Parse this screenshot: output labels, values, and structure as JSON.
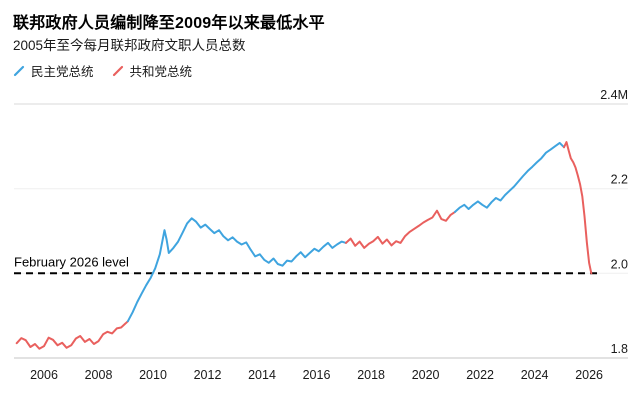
{
  "header": {
    "title": "联邦政府人员编制降至2009年以来最低水平",
    "subtitle": "2005年至今每月联邦政府文职人员总数"
  },
  "legend": {
    "items": [
      {
        "id": "democrat",
        "label": "民主党总统",
        "color": "#3FA4DF"
      },
      {
        "id": "republican",
        "label": "共和党总统",
        "color": "#E9605E"
      }
    ]
  },
  "chart_data": {
    "type": "line",
    "title": "联邦政府人员编制降至2009年以来最低水平",
    "subtitle": "2005年至今每月联邦政府文职人员总数",
    "unit": "millions of federal civilian employees",
    "xlabel": "",
    "ylabel": "",
    "xlim": [
      2004.9,
      2026.4
    ],
    "ylim": [
      1.8,
      2.4
    ],
    "grid": "horizontal",
    "legend_position": "top-left",
    "x_ticks": [
      2006,
      2008,
      2010,
      2012,
      2014,
      2016,
      2018,
      2020,
      2022,
      2024,
      2026
    ],
    "y_ticks": [
      {
        "value": 2.4,
        "label": "2.4M"
      },
      {
        "value": 2.2,
        "label": "2.2"
      },
      {
        "value": 2.0,
        "label": "2.0"
      },
      {
        "value": 1.8,
        "label": "1.8"
      }
    ],
    "annotation": {
      "label": "February 2026 level",
      "value": 2.0
    },
    "series": [
      {
        "id": "republican-2005-2009",
        "name": "共和党总统",
        "color": "#E9605E",
        "points": [
          [
            2005,
            1.835
          ],
          [
            2005.17,
            1.847
          ],
          [
            2005.33,
            1.842
          ],
          [
            2005.5,
            1.826
          ],
          [
            2005.67,
            1.833
          ],
          [
            2005.83,
            1.822
          ],
          [
            2006,
            1.828
          ],
          [
            2006.17,
            1.848
          ],
          [
            2006.33,
            1.843
          ],
          [
            2006.5,
            1.83
          ],
          [
            2006.67,
            1.836
          ],
          [
            2006.83,
            1.824
          ],
          [
            2007,
            1.83
          ],
          [
            2007.17,
            1.846
          ],
          [
            2007.33,
            1.852
          ],
          [
            2007.5,
            1.838
          ],
          [
            2007.67,
            1.845
          ],
          [
            2007.83,
            1.833
          ],
          [
            2008,
            1.84
          ],
          [
            2008.17,
            1.856
          ],
          [
            2008.33,
            1.862
          ],
          [
            2008.5,
            1.858
          ],
          [
            2008.67,
            1.87
          ],
          [
            2008.83,
            1.872
          ],
          [
            2009,
            1.882
          ],
          [
            2009.08,
            1.887
          ]
        ]
      },
      {
        "id": "democrat-2009-2017",
        "name": "民主党总统",
        "color": "#3FA4DF",
        "points": [
          [
            2009.08,
            1.887
          ],
          [
            2009.25,
            1.908
          ],
          [
            2009.42,
            1.932
          ],
          [
            2009.58,
            1.952
          ],
          [
            2009.75,
            1.972
          ],
          [
            2009.92,
            1.99
          ],
          [
            2010.08,
            2.012
          ],
          [
            2010.25,
            2.045
          ],
          [
            2010.42,
            2.102
          ],
          [
            2010.5,
            2.08
          ],
          [
            2010.58,
            2.048
          ],
          [
            2010.75,
            2.06
          ],
          [
            2010.92,
            2.075
          ],
          [
            2011.08,
            2.095
          ],
          [
            2011.25,
            2.118
          ],
          [
            2011.42,
            2.13
          ],
          [
            2011.58,
            2.122
          ],
          [
            2011.75,
            2.108
          ],
          [
            2011.92,
            2.115
          ],
          [
            2012.08,
            2.105
          ],
          [
            2012.25,
            2.095
          ],
          [
            2012.42,
            2.102
          ],
          [
            2012.58,
            2.088
          ],
          [
            2012.75,
            2.078
          ],
          [
            2012.92,
            2.085
          ],
          [
            2013.08,
            2.075
          ],
          [
            2013.25,
            2.068
          ],
          [
            2013.42,
            2.073
          ],
          [
            2013.58,
            2.056
          ],
          [
            2013.75,
            2.04
          ],
          [
            2013.92,
            2.045
          ],
          [
            2014.08,
            2.032
          ],
          [
            2014.25,
            2.025
          ],
          [
            2014.42,
            2.035
          ],
          [
            2014.58,
            2.022
          ],
          [
            2014.75,
            2.018
          ],
          [
            2014.92,
            2.03
          ],
          [
            2015.08,
            2.028
          ],
          [
            2015.25,
            2.04
          ],
          [
            2015.42,
            2.05
          ],
          [
            2015.58,
            2.038
          ],
          [
            2015.75,
            2.048
          ],
          [
            2015.92,
            2.058
          ],
          [
            2016.08,
            2.052
          ],
          [
            2016.25,
            2.063
          ],
          [
            2016.42,
            2.072
          ],
          [
            2016.58,
            2.06
          ],
          [
            2016.75,
            2.068
          ],
          [
            2016.92,
            2.075
          ],
          [
            2017.08,
            2.072
          ]
        ]
      },
      {
        "id": "republican-2017-2021",
        "name": "共和党总统",
        "color": "#E9605E",
        "points": [
          [
            2017.08,
            2.072
          ],
          [
            2017.25,
            2.082
          ],
          [
            2017.42,
            2.065
          ],
          [
            2017.58,
            2.075
          ],
          [
            2017.75,
            2.06
          ],
          [
            2017.92,
            2.07
          ],
          [
            2018.08,
            2.076
          ],
          [
            2018.25,
            2.086
          ],
          [
            2018.42,
            2.07
          ],
          [
            2018.58,
            2.08
          ],
          [
            2018.75,
            2.066
          ],
          [
            2018.92,
            2.076
          ],
          [
            2019.08,
            2.072
          ],
          [
            2019.25,
            2.088
          ],
          [
            2019.42,
            2.098
          ],
          [
            2019.58,
            2.105
          ],
          [
            2019.75,
            2.112
          ],
          [
            2019.92,
            2.12
          ],
          [
            2020.08,
            2.126
          ],
          [
            2020.25,
            2.132
          ],
          [
            2020.42,
            2.148
          ],
          [
            2020.58,
            2.128
          ],
          [
            2020.75,
            2.124
          ],
          [
            2020.92,
            2.138
          ],
          [
            2021.08,
            2.145
          ]
        ]
      },
      {
        "id": "democrat-2021-2025",
        "name": "民主党总统",
        "color": "#3FA4DF",
        "points": [
          [
            2021.08,
            2.145
          ],
          [
            2021.25,
            2.155
          ],
          [
            2021.42,
            2.162
          ],
          [
            2021.58,
            2.152
          ],
          [
            2021.75,
            2.162
          ],
          [
            2021.92,
            2.17
          ],
          [
            2022.08,
            2.162
          ],
          [
            2022.25,
            2.155
          ],
          [
            2022.42,
            2.168
          ],
          [
            2022.58,
            2.178
          ],
          [
            2022.75,
            2.172
          ],
          [
            2022.92,
            2.185
          ],
          [
            2023.08,
            2.195
          ],
          [
            2023.25,
            2.205
          ],
          [
            2023.42,
            2.218
          ],
          [
            2023.58,
            2.23
          ],
          [
            2023.75,
            2.242
          ],
          [
            2023.92,
            2.252
          ],
          [
            2024.08,
            2.262
          ],
          [
            2024.25,
            2.272
          ],
          [
            2024.42,
            2.285
          ],
          [
            2024.58,
            2.292
          ],
          [
            2024.75,
            2.3
          ],
          [
            2024.92,
            2.308
          ],
          [
            2025.08,
            2.298
          ]
        ]
      },
      {
        "id": "republican-2025-2026",
        "name": "共和党总统",
        "color": "#E9605E",
        "points": [
          [
            2025.08,
            2.298
          ],
          [
            2025.17,
            2.31
          ],
          [
            2025.25,
            2.29
          ],
          [
            2025.33,
            2.272
          ],
          [
            2025.42,
            2.262
          ],
          [
            2025.5,
            2.25
          ],
          [
            2025.58,
            2.232
          ],
          [
            2025.67,
            2.21
          ],
          [
            2025.75,
            2.182
          ],
          [
            2025.83,
            2.135
          ],
          [
            2025.92,
            2.072
          ],
          [
            2026,
            2.025
          ],
          [
            2026.08,
            2.0
          ]
        ]
      }
    ]
  }
}
